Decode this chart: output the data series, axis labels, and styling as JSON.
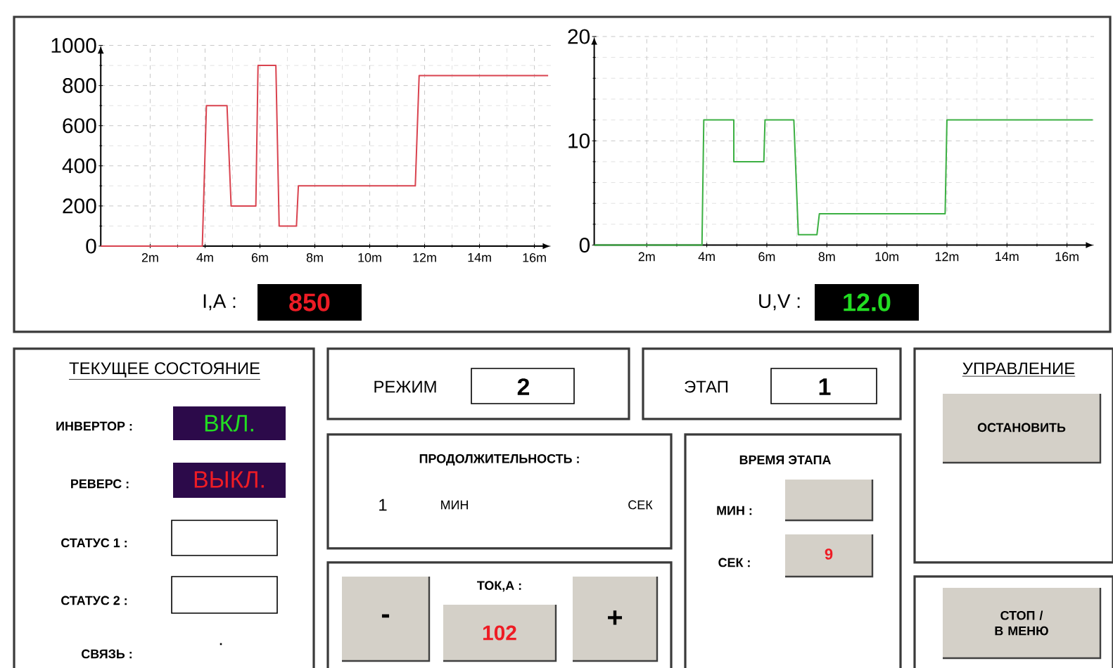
{
  "chart_data": [
    {
      "type": "line",
      "xlim": [
        0.2,
        16.6
      ],
      "ylim": [
        0,
        1000
      ],
      "xticks": [
        {
          "value": 2,
          "label": "2m"
        },
        {
          "value": 4,
          "label": "4m"
        },
        {
          "value": 6,
          "label": "6m"
        },
        {
          "value": 8,
          "label": "8m"
        },
        {
          "value": 10,
          "label": "10m"
        },
        {
          "value": 12,
          "label": "12m"
        },
        {
          "value": 14,
          "label": "14m"
        },
        {
          "value": 16,
          "label": "16m"
        }
      ],
      "yticks": [
        0,
        200,
        400,
        600,
        800,
        1000
      ],
      "grid": true,
      "series": [
        {
          "color": "#d9434f",
          "x": [
            0.2,
            3.9,
            4.05,
            4.8,
            4.95,
            5.85,
            5.93,
            6.58,
            6.7,
            7.33,
            7.4,
            11.66,
            11.8,
            16.5
          ],
          "values": [
            0,
            0,
            700,
            700,
            200,
            200,
            900,
            900,
            100,
            100,
            300,
            300,
            850,
            850
          ]
        }
      ],
      "annotations": [
        "I,A :",
        "850"
      ]
    },
    {
      "type": "line",
      "xlim": [
        0.25,
        16.9
      ],
      "ylim": [
        0,
        20
      ],
      "xticks": [
        {
          "value": 2,
          "label": "2m"
        },
        {
          "value": 4,
          "label": "4m"
        },
        {
          "value": 6,
          "label": "6m"
        },
        {
          "value": 8,
          "label": "8m"
        },
        {
          "value": 10,
          "label": "10m"
        },
        {
          "value": 12,
          "label": "12m"
        },
        {
          "value": 14,
          "label": "14m"
        },
        {
          "value": 16,
          "label": "16m"
        }
      ],
      "yticks": [
        0,
        10,
        20
      ],
      "grid": true,
      "series": [
        {
          "color": "#3cb043",
          "x": [
            0.25,
            3.84,
            3.9,
            4.9,
            4.9,
            5.9,
            5.94,
            6.9,
            7.05,
            7.67,
            7.75,
            11.94,
            12,
            16.86
          ],
          "values": [
            0,
            0,
            12,
            12,
            8,
            8,
            12,
            12,
            1,
            1,
            3,
            3,
            12,
            12
          ]
        }
      ],
      "annotations": [
        "U,V :",
        "12.0"
      ]
    },
    {
      "type": "other",
      "annotations": [
        "ТЕКУЩЕЕ СОСТОЯНИЕ",
        "РЕЖИМ",
        "2",
        "ЭТАП",
        "1",
        "УПРАВЛЕНИЕ",
        "ИНВЕРТОР :",
        "ВКЛ.",
        "ПРОДОЛЖИТЕЛЬНОСТЬ :",
        "ВРЕМЯ ЭТАПА",
        "ОСТАНОВИТЬ",
        "РЕВЕРС :",
        "ВЫКЛ.",
        "1",
        "МИН",
        "СЕК",
        "МИН :",
        "СТАТУС 1 :",
        "СЕК :",
        "9",
        "СТАТУС 2 :",
        "ТОК,А :",
        "-",
        "102",
        "+",
        "СТОП / В МЕНЮ",
        "СВЯЗЬ :",
        "."
      ]
    }
  ]
}
